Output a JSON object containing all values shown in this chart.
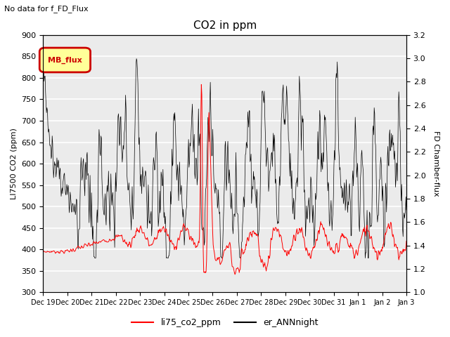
{
  "title": "CO2 in ppm",
  "subtitle": "No data for f_FD_Flux",
  "ylabel_left": "LI7500 CO2 (ppm)",
  "ylabel_right": "FD Chamber-flux",
  "ylim_left": [
    300,
    900
  ],
  "ylim_right": [
    1.0,
    3.2
  ],
  "yticks_left": [
    300,
    350,
    400,
    450,
    500,
    550,
    600,
    650,
    700,
    750,
    800,
    850,
    900
  ],
  "yticks_right": [
    1.0,
    1.2,
    1.4,
    1.6,
    1.8,
    2.0,
    2.2,
    2.4,
    2.6,
    2.8,
    3.0,
    3.2
  ],
  "xtick_labels": [
    "Dec 19",
    "Dec 20",
    "Dec 21",
    "Dec 22",
    "Dec 23",
    "Dec 24",
    "Dec 25",
    "Dec 26",
    "Dec 27",
    "Dec 28",
    "Dec 29",
    "Dec 30",
    "Dec 31",
    "Jan 1",
    "Jan 2",
    "Jan 3"
  ],
  "legend_label_red": "li75_co2_ppm",
  "legend_label_black": "er_ANNnight",
  "legend_box_label": "MB_flux",
  "plot_bg_color": "#ebebeb",
  "grid_color": "white",
  "line_color_red": "#ff0000",
  "line_color_black": "#000000",
  "legend_box_color": "#cc0000",
  "legend_box_fill": "#ffff99"
}
